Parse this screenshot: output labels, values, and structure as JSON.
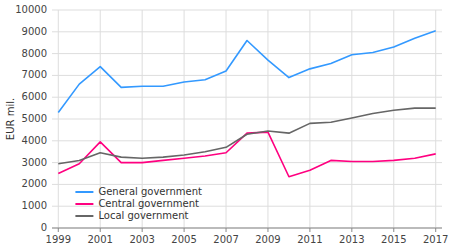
{
  "chart_data": {
    "type": "line",
    "y_label": "EUR mil.",
    "x": [
      1999,
      2000,
      2001,
      2002,
      2003,
      2004,
      2005,
      2006,
      2007,
      2008,
      2009,
      2010,
      2011,
      2012,
      2013,
      2014,
      2015,
      2016,
      2017
    ],
    "series": [
      {
        "name": "General government",
        "color": "#3399ff",
        "values": [
          5300,
          6600,
          7400,
          6450,
          6500,
          6500,
          6700,
          6800,
          7200,
          8600,
          7700,
          6900,
          7300,
          7550,
          7950,
          8050,
          8300,
          8700,
          9050
        ]
      },
      {
        "name": "Central government",
        "color": "#ff0080",
        "values": [
          2500,
          2950,
          3950,
          3000,
          3000,
          3100,
          3200,
          3300,
          3450,
          4350,
          4400,
          2350,
          2650,
          3100,
          3050,
          3050,
          3100,
          3200,
          3400
        ]
      },
      {
        "name": "Local government",
        "color": "#666666",
        "values": [
          2950,
          3100,
          3450,
          3250,
          3200,
          3250,
          3350,
          3500,
          3700,
          4300,
          4450,
          4350,
          4800,
          4850,
          5050,
          5250,
          5400,
          5500,
          5500
        ]
      }
    ],
    "xlim": [
      1998.7,
      2017.3
    ],
    "ylim": [
      0,
      10000
    ],
    "xticks": [
      1999,
      2001,
      2003,
      2005,
      2007,
      2009,
      2011,
      2013,
      2015,
      2017
    ],
    "yticks": [
      0,
      1000,
      2000,
      3000,
      4000,
      5000,
      6000,
      7000,
      8000,
      9000,
      10000
    ],
    "grid": true,
    "legend": "lower left"
  }
}
